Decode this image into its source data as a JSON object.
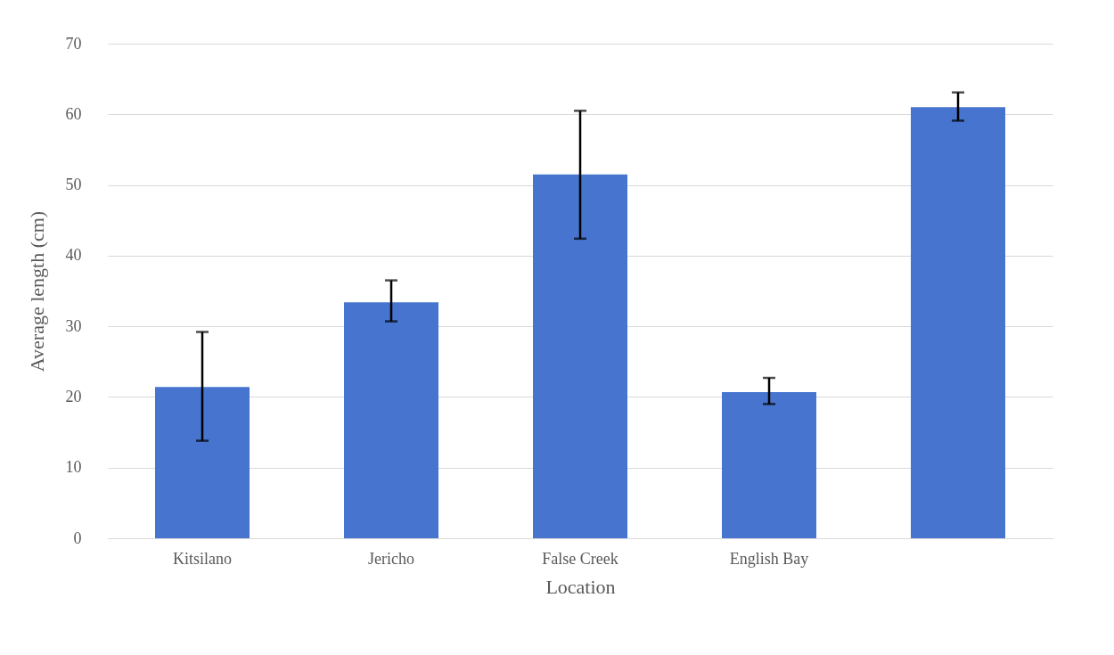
{
  "chart_data": {
    "type": "bar",
    "xlabel": "Location",
    "ylabel": "Average length (cm)",
    "categories": [
      "Kitsilano",
      "Jericho",
      "False Creek",
      "English Bay",
      null
    ],
    "values": [
      21.4,
      33.4,
      51.5,
      20.7,
      61.0
    ],
    "errors": [
      [
        13.8,
        29.2
      ],
      [
        30.7,
        36.5
      ],
      [
        42.4,
        60.5
      ],
      [
        19.0,
        22.7
      ],
      [
        59.1,
        63.1
      ]
    ],
    "color": "#4674cf",
    "ylim": [
      0,
      70
    ],
    "yticks": [
      0,
      10,
      20,
      30,
      40,
      50,
      60,
      70
    ],
    "grid": "y"
  }
}
